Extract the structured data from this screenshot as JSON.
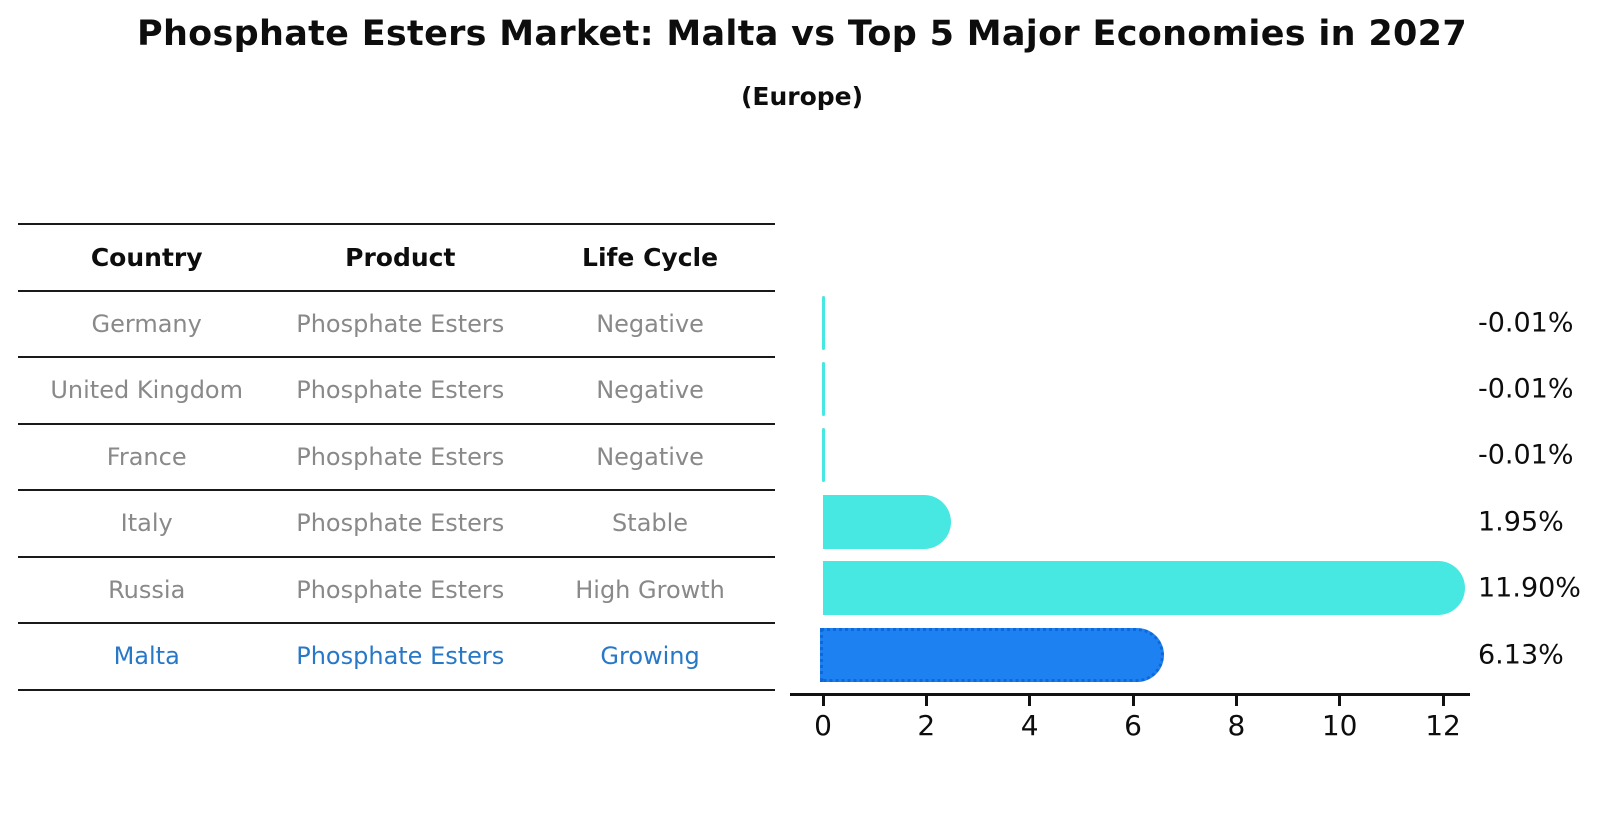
{
  "title": "Phosphate Esters Market: Malta vs Top 5 Major Economies in 2027",
  "subtitle": "(Europe)",
  "table": {
    "headers": [
      "Country",
      "Product",
      "Life Cycle"
    ],
    "rows": [
      {
        "country": "Germany",
        "product": "Phosphate Esters",
        "life_cycle": "Negative",
        "highlight": false
      },
      {
        "country": "United Kingdom",
        "product": "Phosphate Esters",
        "life_cycle": "Negative",
        "highlight": false
      },
      {
        "country": "France",
        "product": "Phosphate Esters",
        "life_cycle": "Negative",
        "highlight": false
      },
      {
        "country": "Italy",
        "product": "Phosphate Esters",
        "life_cycle": "Stable",
        "highlight": false
      },
      {
        "country": "Russia",
        "product": "Phosphate Esters",
        "life_cycle": "High Growth",
        "highlight": false
      },
      {
        "country": "Malta",
        "product": "Phosphate Esters",
        "life_cycle": "Growing",
        "highlight": true
      }
    ]
  },
  "chart_data": {
    "type": "bar",
    "orientation": "horizontal",
    "categories": [
      "Germany",
      "United Kingdom",
      "France",
      "Italy",
      "Russia",
      "Malta"
    ],
    "values": [
      -0.01,
      -0.01,
      -0.01,
      1.95,
      11.9,
      6.13
    ],
    "value_labels": [
      "-0.01%",
      "-0.01%",
      "-0.01%",
      "1.95%",
      "11.90%",
      "6.13%"
    ],
    "highlight_index": 5,
    "xticks": [
      0,
      2,
      4,
      6,
      8,
      10,
      12
    ],
    "xlim": [
      0,
      12.55
    ],
    "grid": false,
    "legend": "none",
    "bar_color_default": "#47e8e2",
    "bar_color_highlight": "#1e81f1",
    "highlight_text_color": "#2878c8"
  }
}
